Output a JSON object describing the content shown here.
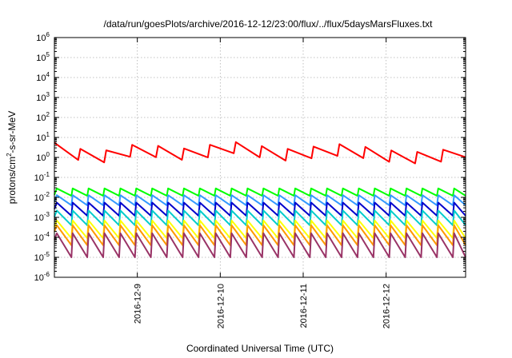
{
  "chart_data": {
    "type": "line",
    "title": "/data/run/goesPlots/archive/2016-12-12/23:00/flux/../flux/5daysMarsFluxes.txt",
    "xlabel": "Coordinated Universal Time (UTC)",
    "ylabel_parts": {
      "pre": "protons/cm",
      "sup": "2",
      "post": "-s-sr-MeV"
    },
    "y_scale": "log",
    "ylim": [
      1e-06,
      1000000.0
    ],
    "xlim": [
      "2016-12-08 00:00",
      "2016-12-12 23:00"
    ],
    "grid": true,
    "y_ticks": [
      {
        "base": "10",
        "exp": "-6",
        "value": 1e-06
      },
      {
        "base": "10",
        "exp": "-5",
        "value": 1e-05
      },
      {
        "base": "10",
        "exp": "-4",
        "value": 0.0001
      },
      {
        "base": "10",
        "exp": "-3",
        "value": 0.001
      },
      {
        "base": "10",
        "exp": "-2",
        "value": 0.01
      },
      {
        "base": "10",
        "exp": "-1",
        "value": 0.1
      },
      {
        "base": "10",
        "exp": "0",
        "value": 1
      },
      {
        "base": "10",
        "exp": "1",
        "value": 10
      },
      {
        "base": "10",
        "exp": "2",
        "value": 100
      },
      {
        "base": "10",
        "exp": "3",
        "value": 1000
      },
      {
        "base": "10",
        "exp": "4",
        "value": 10000
      },
      {
        "base": "10",
        "exp": "5",
        "value": 100000
      },
      {
        "base": "10",
        "exp": "6",
        "value": 1000000
      }
    ],
    "x_ticks": [
      {
        "label": "2016-12-9",
        "value": "2016-12-09 00:00"
      },
      {
        "label": "2016-12-10",
        "value": "2016-12-10 00:00"
      },
      {
        "label": "2016-12-11",
        "value": "2016-12-11 00:00"
      },
      {
        "label": "2016-12-12",
        "value": "2016-12-12 00:00"
      }
    ],
    "series": [
      {
        "color": "#ff0000",
        "pattern": "sawtooth",
        "period_hours": 7.5,
        "high": 3.8,
        "low": 1.0,
        "trend": [
          {
            "t": "2016-12-08 00:00",
            "v": 2.8
          },
          {
            "t": "2016-12-08 12:00",
            "v": 0.9
          },
          {
            "t": "2016-12-09 00:00",
            "v": 2.5
          },
          {
            "t": "2016-12-09 18:00",
            "v": 1.2
          },
          {
            "t": "2016-12-10 00:00",
            "v": 4.0
          },
          {
            "t": "2016-12-10 18:00",
            "v": 1.3
          },
          {
            "t": "2016-12-11 12:00",
            "v": 2.5
          },
          {
            "t": "2016-12-12 00:00",
            "v": 1.2
          },
          {
            "t": "2016-12-12 12:00",
            "v": 0.9
          },
          {
            "t": "2016-12-12 23:00",
            "v": 2.0
          }
        ]
      },
      {
        "color": "#00ff00",
        "pattern": "sawtooth",
        "period_hours": 4.6,
        "high": 0.028,
        "low": 0.012
      },
      {
        "color": "#3399ff",
        "pattern": "sawtooth",
        "period_hours": 4.6,
        "high": 0.013,
        "low": 0.004
      },
      {
        "color": "#0000cc",
        "pattern": "sawtooth",
        "period_hours": 4.6,
        "high": 0.0055,
        "low": 0.0012
      },
      {
        "color": "#00cccc",
        "pattern": "sawtooth",
        "period_hours": 4.6,
        "high": 0.0022,
        "low": 0.0004
      },
      {
        "color": "#ffff00",
        "pattern": "sawtooth",
        "period_hours": 4.6,
        "high": 0.0007,
        "low": 9e-05
      },
      {
        "color": "#ff9900",
        "pattern": "sawtooth",
        "period_hours": 4.6,
        "high": 0.0004,
        "low": 4e-05
      },
      {
        "color": "#993366",
        "pattern": "sawtooth",
        "period_hours": 4.6,
        "high": 0.00016,
        "low": 1e-05
      }
    ]
  }
}
